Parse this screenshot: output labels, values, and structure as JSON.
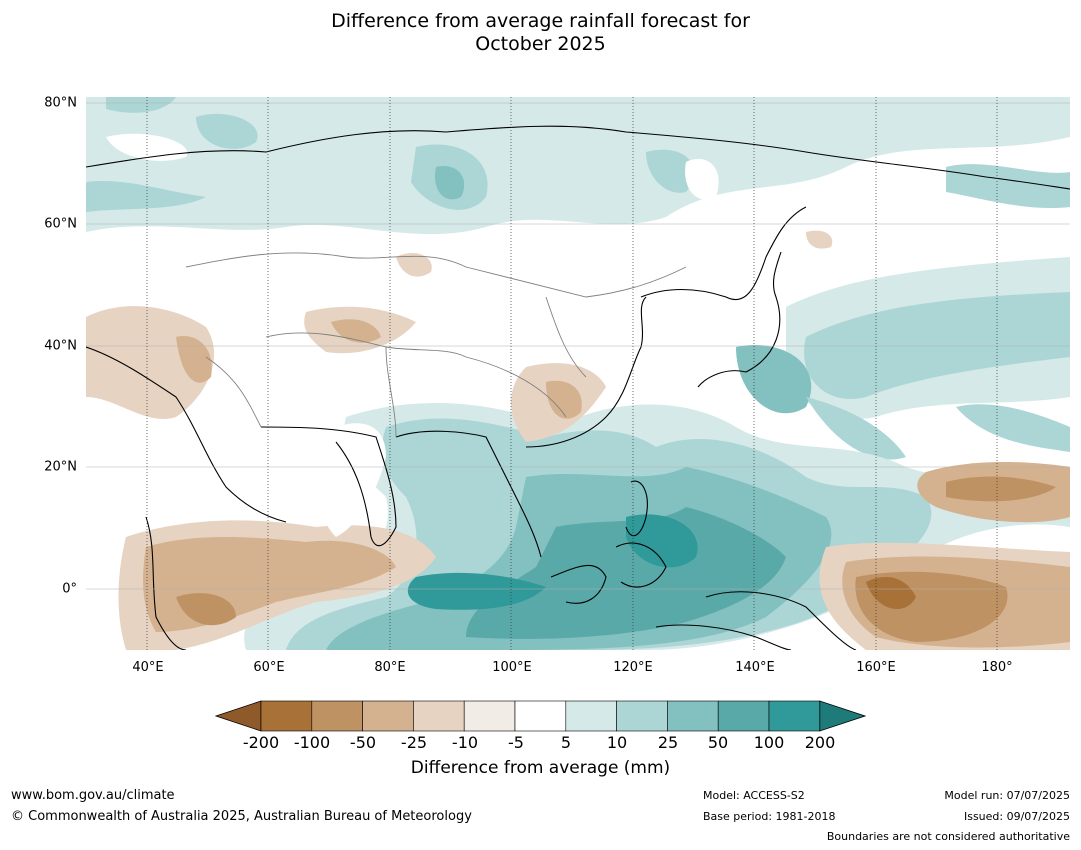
{
  "title": {
    "line1": "Difference from average rainfall forecast for",
    "line2": "October 2025"
  },
  "map": {
    "lat_labels": [
      "80°N",
      "60°N",
      "40°N",
      "20°N",
      "0°"
    ],
    "lon_labels": [
      "40°E",
      "60°E",
      "80°E",
      "100°E",
      "120°E",
      "140°E",
      "160°E",
      "180°"
    ],
    "extent": {
      "lon_min": 30,
      "lon_max": 192,
      "lat_min": -10,
      "lat_max": 81
    }
  },
  "colorbar": {
    "label": "Difference from average (mm)",
    "ticks": [
      "-200",
      "-100",
      "-50",
      "-25",
      "-10",
      "-5",
      "5",
      "10",
      "25",
      "50",
      "100",
      "200"
    ],
    "colors": [
      "#8e5a2a",
      "#a87138",
      "#bf9263",
      "#d4b28f",
      "#e6d3c2",
      "#f1ece6",
      "#ffffff",
      "#d4e9e8",
      "#acd5d5",
      "#83c0c0",
      "#5aa9a9",
      "#309999",
      "#1f7a7a"
    ]
  },
  "footer": {
    "website": "www.bom.gov.au/climate",
    "copyright": "© Commonwealth of Australia 2025, Australian Bureau of Meteorology",
    "model": "Model: ACCESS-S2",
    "base_period": "Base period: 1981-2018",
    "model_run": "Model run: 07/07/2025",
    "issued": "Issued: 09/07/2025",
    "disclaimer": "Boundaries are not considered authoritative"
  }
}
